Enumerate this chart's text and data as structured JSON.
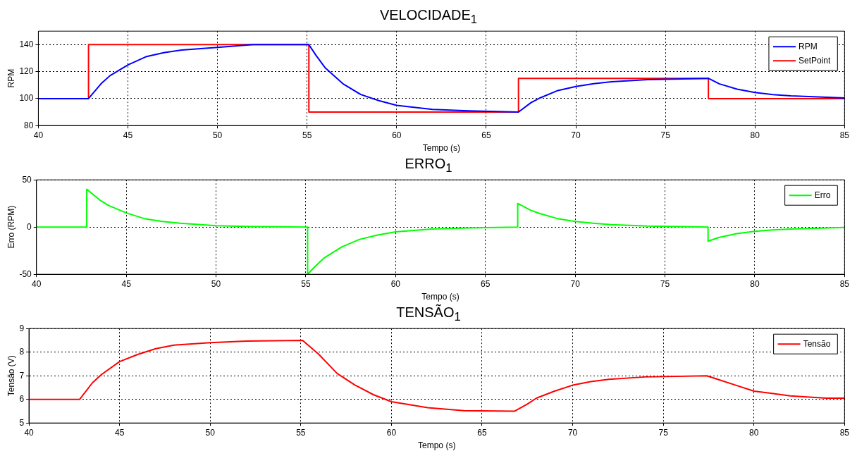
{
  "chart_data": [
    {
      "type": "line",
      "title": "VELOCIDADE$_{1}$",
      "xlabel": "Tempo (s)",
      "ylabel": "RPM",
      "xlim": [
        40,
        85
      ],
      "xticks": [
        40,
        45,
        50,
        55,
        60,
        65,
        70,
        75,
        80,
        85
      ],
      "ylim": [
        80,
        150
      ],
      "yticks": [
        80,
        100,
        120,
        140
      ],
      "grid": true,
      "legend": "top right",
      "series": [
        {
          "name": "RPM",
          "color": "#0000ff",
          "x": [
            40,
            42.8,
            43.5,
            44,
            45,
            46,
            47,
            48,
            50,
            52,
            55.1,
            55.5,
            56,
            57,
            58,
            59,
            60,
            62,
            64,
            66.8,
            67.5,
            68,
            69,
            70,
            71,
            72,
            74,
            77.4,
            78,
            79,
            80,
            81,
            82,
            84,
            85
          ],
          "values": [
            100,
            100,
            111,
            117,
            125,
            131,
            134,
            136,
            138,
            140,
            140,
            132,
            123,
            111,
            103,
            98.5,
            95,
            92,
            91,
            90,
            97,
            100.5,
            106,
            109,
            111,
            112.5,
            114,
            115,
            111,
            107,
            104.5,
            103,
            102,
            101,
            100.5
          ]
        },
        {
          "name": "SetPoint",
          "type": "step",
          "color": "#ff0000",
          "x": [
            40,
            42.8,
            55.1,
            66.8,
            77.4,
            85
          ],
          "values": [
            100,
            140,
            90,
            115,
            100,
            100
          ]
        }
      ]
    },
    {
      "type": "line",
      "title": "ERRO$_{1}$",
      "xlabel": "Tempo (s)",
      "ylabel": "Erro (RPM)",
      "xlim": [
        40,
        85
      ],
      "xticks": [
        40,
        45,
        50,
        55,
        60,
        65,
        70,
        75,
        80,
        85
      ],
      "ylim": [
        -50,
        50
      ],
      "yticks": [
        -50,
        0,
        50
      ],
      "grid": true,
      "legend": "top right",
      "series": [
        {
          "name": "Erro",
          "color": "#00ff00",
          "x": [
            40,
            42.8,
            42.8,
            43.5,
            44,
            45,
            46,
            47,
            48,
            50,
            52,
            55.1,
            55.1,
            55.5,
            56,
            57,
            58,
            59,
            60,
            62,
            64,
            66.8,
            66.8,
            67.5,
            68,
            69,
            70,
            71,
            72,
            74,
            77.4,
            77.4,
            78,
            79,
            80,
            81,
            82,
            84,
            85
          ],
          "values": [
            0,
            0,
            40,
            29,
            23,
            15,
            9,
            6,
            4,
            1.5,
            0.5,
            0,
            -50,
            -42,
            -33,
            -21,
            -13,
            -8.5,
            -5,
            -2,
            -1,
            0,
            25,
            18,
            14.5,
            9,
            6,
            4,
            2.5,
            1,
            0,
            -15,
            -11,
            -7,
            -4.5,
            -3,
            -2,
            -1,
            -0.5
          ]
        }
      ]
    },
    {
      "type": "line",
      "title": "TENSÃO$_{1}$",
      "xlabel": "Tempo (s)",
      "ylabel": "Tensão (V)",
      "xlim": [
        40,
        85
      ],
      "xticks": [
        40,
        45,
        50,
        55,
        60,
        65,
        70,
        75,
        80,
        85
      ],
      "ylim": [
        5,
        9
      ],
      "yticks": [
        5,
        6,
        7,
        8,
        9
      ],
      "grid": true,
      "legend": "top right",
      "series": [
        {
          "name": "Tensão",
          "color": "#ff0000",
          "x": [
            40,
            42.8,
            43.5,
            44,
            45,
            46,
            47,
            48,
            50,
            52,
            55.1,
            56,
            57,
            58,
            59,
            60,
            62,
            64,
            66.8,
            67.5,
            68,
            69,
            70,
            71,
            72,
            74,
            77.4,
            78,
            79,
            80,
            81,
            82,
            84,
            85
          ],
          "values": [
            6,
            6,
            6.7,
            7.05,
            7.6,
            7.9,
            8.15,
            8.3,
            8.4,
            8.47,
            8.5,
            7.9,
            7.1,
            6.6,
            6.2,
            5.9,
            5.65,
            5.52,
            5.5,
            5.8,
            6.05,
            6.35,
            6.6,
            6.75,
            6.85,
            6.95,
            7,
            6.85,
            6.6,
            6.35,
            6.25,
            6.15,
            6.05,
            6.05
          ]
        }
      ]
    }
  ]
}
